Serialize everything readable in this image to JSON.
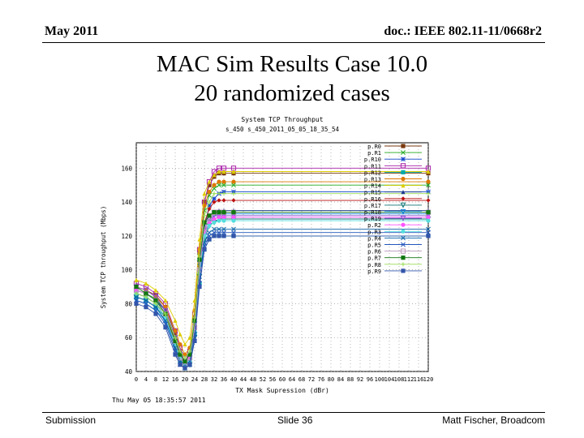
{
  "slide": {
    "date": "May 2011",
    "doc": "doc.: IEEE 802.11-11/0668r2",
    "title_line1": "MAC Sim Results Case 10.0",
    "title_line2": "20 randomized cases",
    "footer_left": "Submission",
    "footer_mid": "Slide 36",
    "footer_right": "Matt Fischer, Broadcom"
  },
  "chart_data": {
    "type": "line",
    "title": "System TCP Throughput",
    "subtitle": "s_450 s_450_2011_05_05_18_35_54",
    "xlabel": "TX Mask Supression (dBr)",
    "ylabel": "System TCP throughput (Mbps)",
    "timestamp": "Thu May 05 18:35:57 2011",
    "xlim": [
      0,
      120
    ],
    "ylim": [
      40,
      175
    ],
    "xticks": [
      0,
      4,
      8,
      12,
      16,
      20,
      24,
      28,
      32,
      36,
      40,
      44,
      48,
      52,
      56,
      60,
      64,
      68,
      72,
      76,
      80,
      84,
      88,
      92,
      96,
      100,
      104,
      108,
      112,
      116,
      120
    ],
    "xtick_labels": [
      "0",
      "4",
      "8",
      "12",
      "16",
      "20",
      "24",
      "28",
      "32",
      "36",
      "40",
      "44",
      "48",
      "52",
      "56",
      "60",
      "64",
      "68",
      "72",
      "76",
      "80",
      "84",
      "88",
      "92",
      "96",
      "100",
      "104",
      "108",
      "112",
      "116",
      "120"
    ],
    "yticks": [
      40,
      60,
      80,
      100,
      120,
      140,
      160
    ],
    "ytick_labels": [
      "40",
      "60",
      "80",
      "100",
      "120",
      "140",
      "160"
    ],
    "grid": true,
    "legend_position": "right",
    "x": [
      0,
      4,
      8,
      12,
      16,
      18,
      20,
      22,
      24,
      26,
      28,
      30,
      32,
      34,
      36,
      40,
      120
    ],
    "series": [
      {
        "name": "p.R0",
        "color": "#7a3a10",
        "marker": "square",
        "values": [
          90,
          88,
          85,
          78,
          62,
          52,
          46,
          50,
          72,
          110,
          140,
          150,
          155,
          157,
          157,
          157,
          157
        ]
      },
      {
        "name": "p.R1",
        "color": "#22aa22",
        "marker": "x",
        "values": [
          88,
          86,
          83,
          76,
          60,
          50,
          44,
          48,
          70,
          108,
          135,
          144,
          148,
          150,
          150,
          150,
          150
        ]
      },
      {
        "name": "p.R10",
        "color": "#1144cc",
        "marker": "star",
        "values": [
          86,
          84,
          80,
          74,
          58,
          48,
          42,
          46,
          66,
          100,
          125,
          138,
          142,
          145,
          146,
          146,
          146
        ]
      },
      {
        "name": "p.R11",
        "color": "#aa22aa",
        "marker": "square-open",
        "values": [
          92,
          90,
          86,
          80,
          64,
          54,
          48,
          52,
          74,
          112,
          140,
          152,
          158,
          160,
          160,
          160,
          160
        ]
      },
      {
        "name": "p.R12",
        "color": "#00aaaa",
        "marker": "square",
        "values": [
          84,
          82,
          78,
          72,
          56,
          46,
          42,
          44,
          62,
          92,
          112,
          118,
          120,
          120,
          120,
          120,
          120
        ]
      },
      {
        "name": "p.R13",
        "color": "#dd7700",
        "marker": "circle",
        "values": [
          90,
          88,
          84,
          78,
          64,
          56,
          50,
          54,
          76,
          112,
          138,
          146,
          150,
          152,
          152,
          152,
          152
        ]
      },
      {
        "name": "p.R14",
        "color": "#ddcc00",
        "marker": "triangle",
        "values": [
          94,
          92,
          88,
          82,
          70,
          62,
          56,
          60,
          82,
          118,
          145,
          152,
          156,
          158,
          158,
          158,
          158
        ]
      },
      {
        "name": "p.R15",
        "color": "#1a3a8a",
        "marker": "triangle",
        "values": [
          88,
          86,
          82,
          76,
          60,
          50,
          44,
          48,
          68,
          104,
          126,
          132,
          134,
          135,
          135,
          135,
          135
        ]
      },
      {
        "name": "p.R16",
        "color": "#bb1111",
        "marker": "diamond",
        "values": [
          86,
          84,
          80,
          72,
          58,
          48,
          44,
          46,
          66,
          102,
          128,
          136,
          140,
          141,
          141,
          141,
          141
        ]
      },
      {
        "name": "p.R17",
        "color": "#117777",
        "marker": "triangle-down",
        "values": [
          84,
          82,
          78,
          70,
          54,
          46,
          42,
          44,
          60,
          96,
          118,
          126,
          128,
          130,
          130,
          130,
          130
        ]
      },
      {
        "name": "p.R18",
        "color": "#1188dd",
        "marker": "triangle-down",
        "values": [
          82,
          80,
          76,
          70,
          56,
          48,
          44,
          46,
          62,
          98,
          120,
          128,
          132,
          133,
          133,
          133,
          133
        ]
      },
      {
        "name": "p.R19",
        "color": "#8855cc",
        "marker": "triangle-down",
        "values": [
          90,
          88,
          84,
          76,
          60,
          50,
          46,
          48,
          68,
          104,
          124,
          130,
          132,
          132,
          132,
          132,
          132
        ]
      },
      {
        "name": "p.R2",
        "color": "#ff55ff",
        "marker": "circle",
        "values": [
          88,
          86,
          82,
          74,
          58,
          50,
          46,
          48,
          66,
          100,
          122,
          128,
          130,
          131,
          131,
          131,
          131
        ]
      },
      {
        "name": "p.R3",
        "color": "#55dddd",
        "marker": "circle",
        "values": [
          86,
          84,
          80,
          72,
          56,
          48,
          44,
          46,
          64,
          98,
          120,
          126,
          128,
          129,
          129,
          129,
          129
        ]
      },
      {
        "name": "p.R4",
        "color": "#1166aa",
        "marker": "x",
        "values": [
          84,
          82,
          78,
          70,
          54,
          46,
          44,
          46,
          62,
          94,
          116,
          122,
          124,
          124,
          124,
          124,
          124
        ]
      },
      {
        "name": "p.R5",
        "color": "#2255bb",
        "marker": "x",
        "values": [
          82,
          80,
          76,
          68,
          52,
          44,
          42,
          44,
          60,
          92,
          114,
          120,
          122,
          122,
          122,
          122,
          122
        ]
      },
      {
        "name": "p.R6",
        "color": "#bb99bb",
        "marker": "square-open",
        "values": [
          88,
          86,
          82,
          74,
          58,
          48,
          44,
          48,
          66,
          100,
          124,
          130,
          134,
          134,
          134,
          134,
          134
        ]
      },
      {
        "name": "p.R7",
        "color": "#117711",
        "marker": "square",
        "values": [
          90,
          86,
          82,
          74,
          58,
          50,
          46,
          50,
          70,
          106,
          128,
          132,
          134,
          134,
          134,
          134,
          134
        ]
      },
      {
        "name": "p.R8",
        "color": "#99dd55",
        "marker": "plus",
        "values": [
          86,
          84,
          80,
          74,
          60,
          52,
          48,
          52,
          72,
          108,
          132,
          140,
          145,
          145,
          145,
          145,
          145
        ]
      },
      {
        "name": "p.R9",
        "color": "#3355aa",
        "marker": "square",
        "values": [
          80,
          78,
          74,
          66,
          50,
          44,
          42,
          44,
          58,
          90,
          112,
          118,
          120,
          120,
          120,
          120,
          120
        ]
      }
    ]
  }
}
